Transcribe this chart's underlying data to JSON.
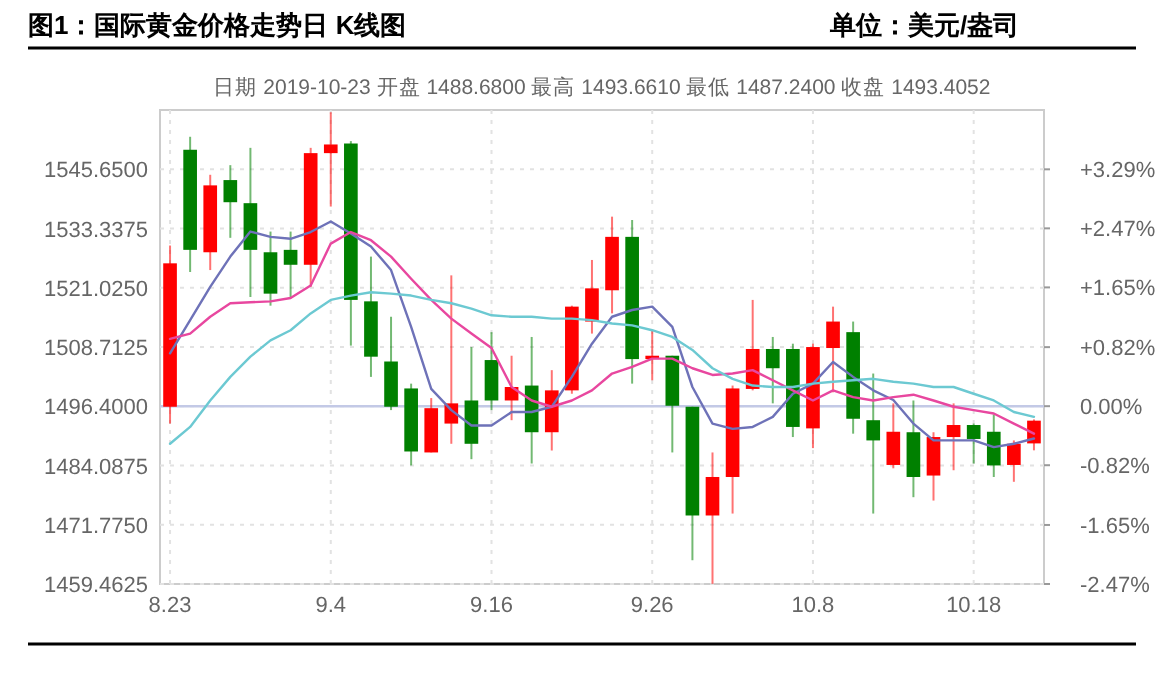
{
  "chart_data": {
    "type": "candlestick",
    "title": "图1：国际黄金价格走势日 K线图",
    "annotations": [
      "单位：美元/盎司"
    ],
    "subtitle": "日期 2019-10-23  开盘 1488.6800 最高 1493.6610 最低 1487.2400 收盘 1493.4052",
    "categories": [
      "8.23",
      null,
      null,
      null,
      null,
      null,
      null,
      null,
      "9.4",
      null,
      null,
      null,
      null,
      null,
      null,
      null,
      "9.16",
      null,
      null,
      null,
      null,
      null,
      null,
      null,
      "9.26",
      null,
      null,
      null,
      null,
      null,
      null,
      null,
      "10.8",
      null,
      null,
      null,
      null,
      null,
      null,
      null,
      "10.18",
      null,
      null,
      null
    ],
    "ohlc": [
      [
        1496.3,
        1529.8,
        1492.8,
        1526.1
      ],
      [
        1549.7,
        1552.4,
        1524.3,
        1528.9
      ],
      [
        1528.4,
        1544.5,
        1524.7,
        1542.3
      ],
      [
        1543.4,
        1546.5,
        1531.4,
        1538.8
      ],
      [
        1538.6,
        1550.1,
        1519.1,
        1528.9
      ],
      [
        1528.4,
        1532.7,
        1517.3,
        1519.8
      ],
      [
        1528.9,
        1532.7,
        1518.9,
        1525.8
      ],
      [
        1525.8,
        1550.1,
        1521.2,
        1549.0
      ],
      [
        1549.0,
        1557.5,
        1537.9,
        1550.8
      ],
      [
        1551.0,
        1551.5,
        1509.0,
        1518.5
      ],
      [
        1518.2,
        1527.5,
        1502.5,
        1506.7
      ],
      [
        1505.7,
        1515.0,
        1495.6,
        1496.3
      ],
      [
        1500.1,
        1501.1,
        1484.1,
        1487.0
      ],
      [
        1486.8,
        1498.1,
        1486.8,
        1496.0
      ],
      [
        1492.8,
        1523.6,
        1488.6,
        1497.0
      ],
      [
        1497.6,
        1508.7,
        1485.4,
        1488.6
      ],
      [
        1506.0,
        1511.8,
        1495.6,
        1497.6
      ],
      [
        1497.6,
        1506.9,
        1493.5,
        1500.4
      ],
      [
        1500.7,
        1510.8,
        1484.5,
        1491.0
      ],
      [
        1491.0,
        1503.9,
        1487.2,
        1499.7
      ],
      [
        1499.7,
        1517.3,
        1499.0,
        1517.1
      ],
      [
        1514.0,
        1526.8,
        1511.5,
        1520.9
      ],
      [
        1520.5,
        1535.8,
        1515.7,
        1531.6
      ],
      [
        1531.6,
        1535.1,
        1501.1,
        1506.2
      ],
      [
        1506.2,
        1512.2,
        1501.8,
        1506.9
      ],
      [
        1506.9,
        1506.9,
        1486.8,
        1496.5
      ],
      [
        1496.3,
        1496.3,
        1464.4,
        1473.7
      ],
      [
        1473.7,
        1486.8,
        1459.5,
        1481.7
      ],
      [
        1481.7,
        1500.7,
        1474.1,
        1500.1
      ],
      [
        1500.0,
        1518.5,
        1499.7,
        1508.3
      ],
      [
        1508.3,
        1510.8,
        1497.0,
        1504.3
      ],
      [
        1508.3,
        1509.4,
        1490.0,
        1492.1
      ],
      [
        1491.8,
        1509.4,
        1487.7,
        1508.7
      ],
      [
        1508.5,
        1517.1,
        1499.3,
        1514.0
      ],
      [
        1511.8,
        1514.0,
        1490.7,
        1493.8
      ],
      [
        1493.5,
        1503.2,
        1474.1,
        1489.3
      ],
      [
        1484.2,
        1497.0,
        1483.5,
        1491.1
      ],
      [
        1491.0,
        1497.6,
        1477.5,
        1481.7
      ],
      [
        1482.0,
        1491.0,
        1476.8,
        1490.0
      ],
      [
        1490.0,
        1497.0,
        1483.1,
        1492.5
      ],
      [
        1492.5,
        1492.8,
        1484.5,
        1489.6
      ],
      [
        1491.1,
        1494.7,
        1481.7,
        1484.1
      ],
      [
        1484.2,
        1489.3,
        1480.7,
        1488.6
      ],
      [
        1488.68,
        1493.661,
        1487.24,
        1493.4052
      ]
    ],
    "colors": [
      "#ff0000",
      "#008000",
      "#ff0000",
      "#008000",
      "#008000",
      "#008000",
      "#008000",
      "#ff0000",
      "#ff0000",
      "#008000",
      "#008000",
      "#008000",
      "#008000",
      "#ff0000",
      "#ff0000",
      "#008000",
      "#008000",
      "#ff0000",
      "#008000",
      "#ff0000",
      "#ff0000",
      "#ff0000",
      "#ff0000",
      "#008000",
      "#ff0000",
      "#008000",
      "#008000",
      "#ff0000",
      "#ff0000",
      "#ff0000",
      "#008000",
      "#008000",
      "#ff0000",
      "#ff0000",
      "#008000",
      "#008000",
      "#ff0000",
      "#008000",
      "#ff0000",
      "#ff0000",
      "#008000",
      "#008000",
      "#ff0000",
      "#ff0000"
    ],
    "series": [
      {
        "type": "line",
        "color": "#6e72b8",
        "values": [
          1507.4,
          1514.3,
          1521.2,
          1527.5,
          1532.7,
          1531.6,
          1531.2,
          1532.6,
          1534.8,
          1532.3,
          1529.6,
          1524.7,
          1512.9,
          1500.0,
          1495.6,
          1492.4,
          1492.4,
          1495.2,
          1495.2,
          1496.3,
          1502.5,
          1509.4,
          1515.0,
          1516.4,
          1517.1,
          1512.9,
          1500.4,
          1492.8,
          1491.7,
          1492.1,
          1494.2,
          1499.0,
          1501.1,
          1505.6,
          1502.5,
          1499.7,
          1497.7,
          1492.8,
          1489.3,
          1489.3,
          1489.3,
          1487.9,
          1488.6,
          1489.7
        ]
      },
      {
        "type": "line",
        "color": "#e8479f",
        "values": [
          1510.4,
          1511.5,
          1515.0,
          1517.8,
          1518.0,
          1518.2,
          1518.9,
          1521.5,
          1530.2,
          1532.6,
          1530.9,
          1527.5,
          1522.9,
          1518.5,
          1514.6,
          1511.5,
          1508.5,
          1500.4,
          1497.6,
          1496.3,
          1497.6,
          1499.7,
          1503.2,
          1504.6,
          1506.3,
          1506.3,
          1504.3,
          1502.9,
          1503.2,
          1503.9,
          1501.8,
          1499.7,
          1497.6,
          1499.7,
          1498.3,
          1497.6,
          1498.3,
          1498.8,
          1497.6,
          1496.3,
          1495.6,
          1494.9,
          1492.8,
          1490.7
        ]
      },
      {
        "type": "line",
        "color": "#6cc9d2",
        "values": [
          1488.6,
          1492.1,
          1497.6,
          1502.5,
          1506.7,
          1510.1,
          1512.2,
          1515.7,
          1518.5,
          1519.4,
          1520.1,
          1519.8,
          1519.4,
          1518.5,
          1517.8,
          1516.7,
          1515.3,
          1515.0,
          1515.0,
          1514.6,
          1514.6,
          1514.3,
          1513.6,
          1513.2,
          1512.2,
          1510.8,
          1508.1,
          1504.3,
          1502.1,
          1500.7,
          1500.4,
          1500.4,
          1501.1,
          1501.5,
          1501.8,
          1502.1,
          1501.5,
          1501.1,
          1500.4,
          1500.4,
          1499.0,
          1497.6,
          1495.2,
          1494.2
        ]
      }
    ],
    "ylim": [
      1459.4625,
      1557.9625
    ],
    "yticks": [
      {
        "value": 1459.4625,
        "label": "1459.4625"
      },
      {
        "value": 1471.775,
        "label": "1471.7750"
      },
      {
        "value": 1484.0875,
        "label": "1484.0875"
      },
      {
        "value": 1496.4,
        "label": "1496.4000"
      },
      {
        "value": 1508.7125,
        "label": "1508.7125"
      },
      {
        "value": 1521.025,
        "label": "1521.0250"
      },
      {
        "value": 1533.3375,
        "label": "1533.3375"
      },
      {
        "value": 1545.65,
        "label": "1545.6500"
      }
    ],
    "y2lim": [
      -2.47,
      4.114
    ],
    "y2ticks": [
      {
        "value": -2.47,
        "label": "-2.47%"
      },
      {
        "value": -1.65,
        "label": "-1.65%"
      },
      {
        "value": -0.82,
        "label": "-0.82%"
      },
      {
        "value": 0,
        "label": "0.00%"
      },
      {
        "value": 0.82,
        "label": "+0.82%"
      },
      {
        "value": 1.65,
        "label": "+1.65%"
      },
      {
        "value": 2.47,
        "label": "+2.47%"
      },
      {
        "value": 3.29,
        "label": "+3.29%"
      }
    ],
    "ref_lines": [
      {
        "axis": "y",
        "value": 1496.4,
        "color": "#c3c9e6"
      }
    ],
    "grid": true
  }
}
